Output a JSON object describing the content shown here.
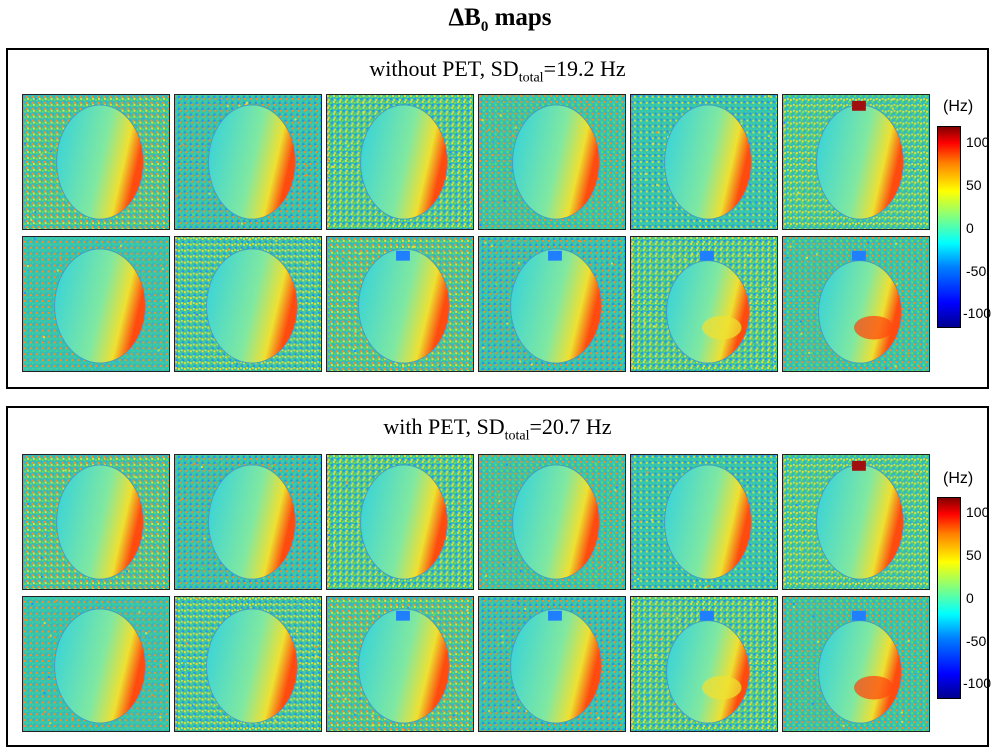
{
  "figure": {
    "title_main": "ΔB",
    "title_sub": "0",
    "title_tail": " maps"
  },
  "panels": [
    {
      "label_prefix": "without PET, SD",
      "label_sub": "total",
      "label_value": "=19.2 Hz",
      "colorbar": {
        "unit": "(Hz)",
        "ticks": [
          "100",
          "50",
          "0",
          "-50",
          "-100"
        ]
      }
    },
    {
      "label_prefix": "with PET, SD",
      "label_sub": "total",
      "label_value": "=20.7 Hz",
      "colorbar": {
        "unit": "(Hz)",
        "ticks": [
          "100",
          "50",
          "0",
          "-50",
          "-100"
        ]
      }
    }
  ],
  "colors": {
    "noise_base": "#3fbf9f",
    "head_base": "#2fd0e0",
    "hot": "#ff4a10",
    "warm": "#f0e030",
    "cool": "#1f7fff"
  },
  "map_grid": {
    "rows": 2,
    "cols": 6
  }
}
